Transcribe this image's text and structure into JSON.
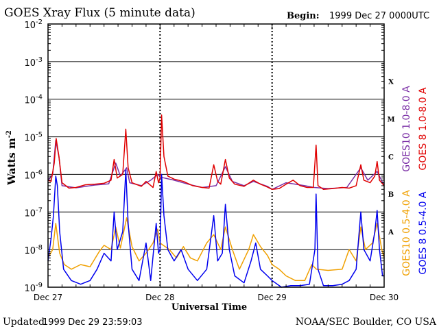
{
  "colors": {
    "goes10_long": "#7b2fa6",
    "goes8_long": "#e00000",
    "goes10_short": "#f0a000",
    "goes8_short": "#0000ee",
    "axis": "#000000"
  },
  "header": {
    "title": "GOES Xray Flux (5 minute data)",
    "begin_label": "Begin:",
    "begin_value": "1999 Dec 27 0000UTC"
  },
  "footer": {
    "updated_label": "Updated",
    "updated_value": "1999 Dec 29 23:59:03",
    "credit": "NOAA/SEC Boulder, CO USA"
  },
  "chart_data": {
    "type": "line",
    "title": "GOES Xray Flux (5 minute data)",
    "xlabel": "Universal Time",
    "ylabel_base": "Watts m",
    "ylabel_exp": "-2",
    "yscale": "log",
    "ylim": [
      1e-09,
      0.01
    ],
    "xlim": [
      "1999-12-27 00:00",
      "1999-12-30 00:00"
    ],
    "grid": "horizontal at decades",
    "x_ticks": [
      {
        "date": "1999-12-27 00:00",
        "label": "Dec 27"
      },
      {
        "date": "1999-12-28 00:00",
        "label": "Dec 28"
      },
      {
        "date": "1999-12-29 00:00",
        "label": "Dec 29"
      },
      {
        "date": "1999-12-30 00:00",
        "label": "Dec 30"
      }
    ],
    "y_ticks": [
      {
        "value": 0.01,
        "base": "10",
        "exp": "-2"
      },
      {
        "value": 0.001,
        "base": "10",
        "exp": "-3"
      },
      {
        "value": 0.0001,
        "base": "10",
        "exp": "-4"
      },
      {
        "value": 1e-05,
        "base": "10",
        "exp": "-5"
      },
      {
        "value": 1e-06,
        "base": "10",
        "exp": "-6"
      },
      {
        "value": 1e-07,
        "base": "10",
        "exp": "-7"
      },
      {
        "value": 1e-08,
        "base": "10",
        "exp": "-8"
      },
      {
        "value": 1e-09,
        "base": "10",
        "exp": "-9"
      }
    ],
    "flare_classes": [
      {
        "label": "X",
        "value": 0.0003
      },
      {
        "label": "M",
        "value": 3e-05
      },
      {
        "label": "C",
        "value": 3e-06
      },
      {
        "label": "B",
        "value": 3e-07
      },
      {
        "label": "A",
        "value": 3e-08
      }
    ],
    "series": [
      {
        "name": "GOES10 1.0-8.0 A",
        "key": "goes10_long",
        "points": [
          [
            "1999-12-27 00:00",
            7e-07
          ],
          [
            "1999-12-27 01:00",
            1e-06
          ],
          [
            "1999-12-27 01:40",
            8e-06
          ],
          [
            "1999-12-27 02:20",
            3e-06
          ],
          [
            "1999-12-27 03:00",
            5e-07
          ],
          [
            "1999-12-27 06:00",
            4.4e-07
          ],
          [
            "1999-12-27 10:00",
            5.2e-07
          ],
          [
            "1999-12-27 13:00",
            5.6e-07
          ],
          [
            "1999-12-27 14:30",
            2e-06
          ],
          [
            "1999-12-27 15:30",
            9e-07
          ],
          [
            "1999-12-27 16:50",
            1.5e-06
          ],
          [
            "1999-12-27 17:30",
            6e-07
          ],
          [
            "1999-12-27 20:00",
            5e-07
          ],
          [
            "1999-12-27 22:00",
            7e-07
          ],
          [
            "1999-12-27 23:30",
            1e-06
          ],
          [
            "1999-12-28 00:00",
            8.5e-07
          ],
          [
            "1999-12-28 03:00",
            7e-07
          ],
          [
            "1999-12-28 06:00",
            5.5e-07
          ],
          [
            "1999-12-28 09:00",
            4.5e-07
          ],
          [
            "1999-12-28 12:00",
            5e-07
          ],
          [
            "1999-12-28 14:00",
            1.6e-06
          ],
          [
            "1999-12-28 15:30",
            6.5e-07
          ],
          [
            "1999-12-28 18:00",
            5e-07
          ],
          [
            "1999-12-28 20:00",
            6.5e-07
          ],
          [
            "1999-12-28 23:00",
            4.8e-07
          ],
          [
            "1999-12-29 00:00",
            4e-07
          ],
          [
            "1999-12-29 03:00",
            6e-07
          ],
          [
            "1999-12-29 07:00",
            5e-07
          ],
          [
            "1999-12-29 09:00",
            4.5e-07
          ],
          [
            "1999-12-29 12:00",
            4.2e-07
          ],
          [
            "1999-12-29 16:00",
            4.5e-07
          ],
          [
            "1999-12-29 19:00",
            1.5e-06
          ],
          [
            "1999-12-29 20:30",
            7e-07
          ],
          [
            "1999-12-29 22:30",
            1.2e-06
          ],
          [
            "1999-12-30 00:00",
            5e-07
          ]
        ]
      },
      {
        "name": "GOES 8 1.0-8.0 A",
        "key": "goes8_long",
        "points": [
          [
            "1999-12-27 00:00",
            7e-07
          ],
          [
            "1999-12-27 00:40",
            6.5e-07
          ],
          [
            "1999-12-27 01:20",
            2e-06
          ],
          [
            "1999-12-27 01:45",
            9e-06
          ],
          [
            "1999-12-27 02:20",
            3e-06
          ],
          [
            "1999-12-27 03:00",
            6e-07
          ],
          [
            "1999-12-27 04:30",
            4.3e-07
          ],
          [
            "1999-12-27 06:00",
            4.5e-07
          ],
          [
            "1999-12-27 08:00",
            5.3e-07
          ],
          [
            "1999-12-27 10:00",
            5.5e-07
          ],
          [
            "1999-12-27 12:00",
            5.8e-07
          ],
          [
            "1999-12-27 13:30",
            7e-07
          ],
          [
            "1999-12-27 14:10",
            2.5e-06
          ],
          [
            "1999-12-27 14:50",
            8e-07
          ],
          [
            "1999-12-27 16:00",
            1e-06
          ],
          [
            "1999-12-27 16:40",
            1.6e-05
          ],
          [
            "1999-12-27 17:10",
            1.5e-06
          ],
          [
            "1999-12-27 18:00",
            6e-07
          ],
          [
            "1999-12-27 20:00",
            4.8e-07
          ],
          [
            "1999-12-27 21:00",
            6.5e-07
          ],
          [
            "1999-12-27 22:30",
            4.5e-07
          ],
          [
            "1999-12-27 23:10",
            1.2e-06
          ],
          [
            "1999-12-27 23:40",
            6e-07
          ],
          [
            "1999-12-28 00:00",
            8e-07
          ],
          [
            "1999-12-28 00:20",
            3.8e-05
          ],
          [
            "1999-12-28 00:50",
            3e-06
          ],
          [
            "1999-12-28 01:40",
            9e-07
          ],
          [
            "1999-12-28 03:00",
            7.5e-07
          ],
          [
            "1999-12-28 05:00",
            6.5e-07
          ],
          [
            "1999-12-28 07:00",
            5e-07
          ],
          [
            "1999-12-28 09:00",
            4.5e-07
          ],
          [
            "1999-12-28 10:30",
            4.3e-07
          ],
          [
            "1999-12-28 11:30",
            1.8e-06
          ],
          [
            "1999-12-28 12:20",
            6.5e-07
          ],
          [
            "1999-12-28 13:00",
            5.5e-07
          ],
          [
            "1999-12-28 14:00",
            2.5e-06
          ],
          [
            "1999-12-28 14:50",
            8e-07
          ],
          [
            "1999-12-28 16:00",
            5.5e-07
          ],
          [
            "1999-12-28 18:00",
            4.8e-07
          ],
          [
            "1999-12-28 20:00",
            7e-07
          ],
          [
            "1999-12-28 21:30",
            5.5e-07
          ],
          [
            "1999-12-28 23:00",
            4.6e-07
          ],
          [
            "1999-12-29 00:00",
            4e-07
          ],
          [
            "1999-12-29 01:30",
            4.2e-07
          ],
          [
            "1999-12-29 03:00",
            5.5e-07
          ],
          [
            "1999-12-29 04:30",
            7e-07
          ],
          [
            "1999-12-29 06:00",
            5e-07
          ],
          [
            "1999-12-29 07:30",
            4.5e-07
          ],
          [
            "1999-12-29 08:50",
            4.5e-07
          ],
          [
            "1999-12-29 09:25",
            6e-06
          ],
          [
            "1999-12-29 09:50",
            5e-07
          ],
          [
            "1999-12-29 11:00",
            4e-07
          ],
          [
            "1999-12-29 13:00",
            4.2e-07
          ],
          [
            "1999-12-29 15:00",
            4.5e-07
          ],
          [
            "1999-12-29 16:30",
            4.3e-07
          ],
          [
            "1999-12-29 18:00",
            5e-07
          ],
          [
            "1999-12-29 19:00",
            1.8e-06
          ],
          [
            "1999-12-29 19:40",
            7e-07
          ],
          [
            "1999-12-29 21:00",
            6e-07
          ],
          [
            "1999-12-29 22:00",
            9e-07
          ],
          [
            "1999-12-29 22:30",
            2.2e-06
          ],
          [
            "1999-12-29 23:00",
            7e-07
          ],
          [
            "1999-12-30 00:00",
            5e-07
          ]
        ]
      },
      {
        "name": "GOES10 0.5-4.0 A",
        "key": "goes10_short",
        "points": [
          [
            "1999-12-27 00:00",
            6e-09
          ],
          [
            "1999-12-27 01:00",
            1e-08
          ],
          [
            "1999-12-27 01:40",
            5e-08
          ],
          [
            "1999-12-27 02:30",
            8e-09
          ],
          [
            "1999-12-27 03:30",
            4e-09
          ],
          [
            "1999-12-27 05:00",
            3e-09
          ],
          [
            "1999-12-27 07:00",
            4e-09
          ],
          [
            "1999-12-27 09:00",
            3.5e-09
          ],
          [
            "1999-12-27 11:00",
            9e-09
          ],
          [
            "1999-12-27 12:00",
            1.3e-08
          ],
          [
            "1999-12-27 13:30",
            1e-08
          ],
          [
            "1999-12-27 14:30",
            4e-08
          ],
          [
            "1999-12-27 15:30",
            1.1e-08
          ],
          [
            "1999-12-27 16:50",
            7e-08
          ],
          [
            "1999-12-27 18:00",
            1.2e-08
          ],
          [
            "1999-12-27 19:30",
            5e-09
          ],
          [
            "1999-12-27 21:00",
            8e-09
          ],
          [
            "1999-12-27 22:30",
            1.5e-08
          ],
          [
            "1999-12-27 23:30",
            3.5e-08
          ],
          [
            "1999-12-28 00:00",
            1.5e-08
          ],
          [
            "1999-12-28 02:00",
            1e-08
          ],
          [
            "1999-12-28 03:30",
            6e-09
          ],
          [
            "1999-12-28 05:00",
            1.2e-08
          ],
          [
            "1999-12-28 06:30",
            6e-09
          ],
          [
            "1999-12-28 08:00",
            5e-09
          ],
          [
            "1999-12-28 10:00",
            1.5e-08
          ],
          [
            "1999-12-28 11:30",
            2.5e-08
          ],
          [
            "1999-12-28 13:00",
            1e-08
          ],
          [
            "1999-12-28 14:00",
            4e-08
          ],
          [
            "1999-12-28 15:30",
            1e-08
          ],
          [
            "1999-12-28 17:00",
            3e-09
          ],
          [
            "1999-12-28 19:00",
            1e-08
          ],
          [
            "1999-12-28 20:00",
            2.5e-08
          ],
          [
            "1999-12-28 21:30",
            1.2e-08
          ],
          [
            "1999-12-28 23:00",
            7e-09
          ],
          [
            "1999-12-29 00:00",
            4e-09
          ],
          [
            "1999-12-29 01:30",
            3e-09
          ],
          [
            "1999-12-29 03:00",
            2e-09
          ],
          [
            "1999-12-29 05:00",
            1.5e-09
          ],
          [
            "1999-12-29 07:00",
            1.5e-09
          ],
          [
            "1999-12-29 08:30",
            4e-09
          ],
          [
            "1999-12-29 09:30",
            3e-09
          ],
          [
            "1999-12-29 12:00",
            2.8e-09
          ],
          [
            "1999-12-29 15:00",
            3e-09
          ],
          [
            "1999-12-29 16:30",
            1e-08
          ],
          [
            "1999-12-29 18:00",
            5e-09
          ],
          [
            "1999-12-29 19:00",
            4e-08
          ],
          [
            "1999-12-29 20:00",
            1e-08
          ],
          [
            "1999-12-29 21:30",
            1.5e-08
          ],
          [
            "1999-12-29 22:30",
            5e-08
          ],
          [
            "1999-12-29 23:30",
            1e-08
          ],
          [
            "1999-12-30 00:00",
            6e-09
          ]
        ]
      },
      {
        "name": "GOES 8 0.5-4.0 A",
        "key": "goes8_short",
        "points": [
          [
            "1999-12-27 00:00",
            5e-09
          ],
          [
            "1999-12-27 00:40",
            2e-08
          ],
          [
            "1999-12-27 01:10",
            8e-08
          ],
          [
            "1999-12-27 01:40",
            9e-07
          ],
          [
            "1999-12-27 02:00",
            5e-07
          ],
          [
            "1999-12-27 02:30",
            3e-08
          ],
          [
            "1999-12-27 03:20",
            3e-09
          ],
          [
            "1999-12-27 05:00",
            1.5e-09
          ],
          [
            "1999-12-27 07:00",
            1.2e-09
          ],
          [
            "1999-12-27 09:00",
            1.5e-09
          ],
          [
            "1999-12-27 10:30",
            3e-09
          ],
          [
            "1999-12-27 12:00",
            8e-09
          ],
          [
            "1999-12-27 13:30",
            5e-09
          ],
          [
            "1999-12-27 14:10",
            1e-07
          ],
          [
            "1999-12-27 14:50",
            1e-08
          ],
          [
            "1999-12-27 16:00",
            3e-08
          ],
          [
            "1999-12-27 16:40",
            1.3e-06
          ],
          [
            "1999-12-27 17:10",
            5e-08
          ],
          [
            "1999-12-27 18:00",
            3e-09
          ],
          [
            "1999-12-27 19:30",
            1.5e-09
          ],
          [
            "1999-12-27 21:00",
            1.5e-08
          ],
          [
            "1999-12-27 22:00",
            1.5e-09
          ],
          [
            "1999-12-27 23:10",
            5e-08
          ],
          [
            "1999-12-27 23:40",
            8e-09
          ],
          [
            "1999-12-28 00:00",
            1e-08
          ],
          [
            "1999-12-28 00:20",
            1e-06
          ],
          [
            "1999-12-28 00:50",
            8e-08
          ],
          [
            "1999-12-28 01:40",
            1e-08
          ],
          [
            "1999-12-28 03:00",
            5e-09
          ],
          [
            "1999-12-28 04:30",
            1e-08
          ],
          [
            "1999-12-28 06:00",
            3e-09
          ],
          [
            "1999-12-28 08:00",
            1.5e-09
          ],
          [
            "1999-12-28 10:00",
            3e-09
          ],
          [
            "1999-12-28 11:30",
            8e-08
          ],
          [
            "1999-12-28 12:20",
            5e-09
          ],
          [
            "1999-12-28 13:20",
            8e-09
          ],
          [
            "1999-12-28 14:00",
            1.6e-07
          ],
          [
            "1999-12-28 14:50",
            1e-08
          ],
          [
            "1999-12-28 16:00",
            2e-09
          ],
          [
            "1999-12-28 18:00",
            1.3e-09
          ],
          [
            "1999-12-28 19:30",
            5e-09
          ],
          [
            "1999-12-28 20:30",
            1.5e-08
          ],
          [
            "1999-12-28 21:30",
            3e-09
          ],
          [
            "1999-12-28 23:00",
            2e-09
          ],
          [
            "1999-12-29 00:00",
            1.5e-09
          ],
          [
            "1999-12-29 02:00",
            1e-09
          ],
          [
            "1999-12-29 04:00",
            1.1e-09
          ],
          [
            "1999-12-29 06:00",
            1.1e-09
          ],
          [
            "1999-12-29 08:00",
            1.2e-09
          ],
          [
            "1999-12-29 09:10",
            1e-08
          ],
          [
            "1999-12-29 09:25",
            3e-07
          ],
          [
            "1999-12-29 09:50",
            3e-09
          ],
          [
            "1999-12-29 11:00",
            1.1e-09
          ],
          [
            "1999-12-29 13:00",
            1.1e-09
          ],
          [
            "1999-12-29 15:00",
            1.2e-09
          ],
          [
            "1999-12-29 16:30",
            1.5e-09
          ],
          [
            "1999-12-29 18:00",
            3e-09
          ],
          [
            "1999-12-29 19:00",
            1e-07
          ],
          [
            "1999-12-29 19:40",
            1e-08
          ],
          [
            "1999-12-29 21:00",
            5e-09
          ],
          [
            "1999-12-29 22:00",
            3e-08
          ],
          [
            "1999-12-29 22:30",
            1.1e-07
          ],
          [
            "1999-12-29 23:00",
            1e-08
          ],
          [
            "1999-12-29 23:40",
            2e-09
          ],
          [
            "1999-12-30 00:00",
            2e-09
          ]
        ]
      }
    ]
  }
}
